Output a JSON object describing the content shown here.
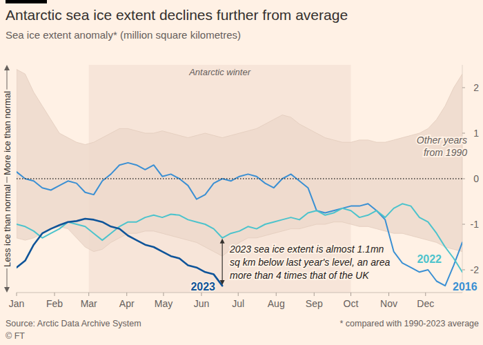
{
  "chart_data": {
    "type": "line",
    "title": "Antarctic sea ice extent declines further from average",
    "subtitle": "Sea ice extent anomaly* (million square kilometres)",
    "source": "Source: Arctic Data Archive System",
    "note": "* compared with 1990-2023 average",
    "credit": "© FT",
    "x": [
      1,
      8,
      15,
      22,
      29,
      36,
      43,
      50,
      57,
      64,
      71,
      78,
      85,
      92,
      99,
      106,
      113,
      120,
      127,
      134,
      141,
      148,
      155,
      162,
      169,
      176,
      183,
      190,
      197,
      204,
      211,
      218,
      225,
      232,
      239,
      246,
      253,
      260,
      267,
      274,
      281,
      288,
      295,
      302,
      309,
      316,
      323,
      330,
      337,
      344,
      351,
      358,
      365
    ],
    "xlim": [
      1,
      365
    ],
    "xticks": [
      {
        "value": 1,
        "label": "Jan"
      },
      {
        "value": 32,
        "label": "Feb"
      },
      {
        "value": 60,
        "label": "Mar"
      },
      {
        "value": 91,
        "label": "Apr"
      },
      {
        "value": 121,
        "label": "May"
      },
      {
        "value": 152,
        "label": "Jun"
      },
      {
        "value": 182,
        "label": "Jul"
      },
      {
        "value": 213,
        "label": "Aug"
      },
      {
        "value": 244,
        "label": "Sep"
      },
      {
        "value": 274,
        "label": "Oct"
      },
      {
        "value": 305,
        "label": "Nov"
      },
      {
        "value": 335,
        "label": "Dec"
      }
    ],
    "ylim": [
      -2.5,
      2.5
    ],
    "yticks": [
      -2,
      -1,
      0,
      1,
      2
    ],
    "grid": false,
    "series": [
      {
        "name": "Other years from 1990",
        "type": "band",
        "color": "#ecd8cb",
        "values": [
          2.4,
          2.3,
          1.9,
          1.6,
          1.3,
          1.0,
          0.9,
          0.8,
          0.75,
          0.8,
          0.9,
          1.0,
          1.1,
          1.1,
          1.05,
          1.0,
          1.0,
          1.05,
          1.0,
          0.95,
          0.9,
          0.95,
          1.0,
          0.95,
          0.9,
          0.95,
          1.0,
          1.05,
          1.1,
          1.2,
          1.3,
          1.4,
          1.35,
          1.2,
          1.1,
          1.0,
          0.9,
          0.85,
          0.8,
          0.8,
          0.85,
          0.85,
          0.8,
          0.8,
          0.85,
          0.9,
          0.95,
          1.0,
          1.1,
          1.3,
          1.6,
          2.0,
          2.3
        ],
        "lower": [
          -1.3,
          -1.35,
          -1.3,
          -1.2,
          -1.1,
          -1.05,
          -1.1,
          -1.3,
          -1.5,
          -1.6,
          -1.55,
          -1.4,
          -1.3,
          -1.2,
          -1.2,
          -1.15,
          -1.15,
          -1.2,
          -1.25,
          -1.3,
          -1.35,
          -1.4,
          -1.5,
          -1.6,
          -1.7,
          -1.55,
          -1.4,
          -1.3,
          -1.3,
          -1.25,
          -1.2,
          -1.15,
          -1.1,
          -1.1,
          -1.05,
          -1.0,
          -1.0,
          -0.95,
          -0.95,
          -1.0,
          -1.05,
          -1.05,
          -1.1,
          -1.15,
          -1.2,
          -1.2,
          -1.25,
          -1.3,
          -1.35,
          -1.4,
          -1.5,
          -1.55,
          -1.6
        ]
      },
      {
        "name": "2016",
        "type": "line",
        "color": "#3a8fd3",
        "values": [
          0.15,
          0.0,
          -0.05,
          -0.2,
          -0.25,
          -0.15,
          -0.05,
          -0.1,
          -0.3,
          -0.35,
          -0.05,
          0.1,
          0.3,
          0.35,
          0.3,
          0.2,
          0.3,
          0.05,
          0.1,
          0.0,
          -0.15,
          -0.45,
          -0.35,
          -0.1,
          0.0,
          -0.05,
          0.05,
          0.1,
          0.05,
          -0.1,
          -0.2,
          0.0,
          0.1,
          -0.05,
          -0.2,
          -0.7,
          -0.75,
          -0.7,
          -0.65,
          -0.6,
          -0.6,
          -0.55,
          -0.7,
          -0.9,
          -1.6,
          -1.85,
          -1.95,
          -2.05,
          -2.0,
          -2.25,
          -2.35,
          -1.9,
          -1.4
        ]
      },
      {
        "name": "2022",
        "type": "line",
        "color": "#4cc3cc",
        "values": [
          -1.0,
          -1.05,
          -1.15,
          -1.3,
          -1.2,
          -1.1,
          -0.95,
          -1.0,
          -1.05,
          -1.2,
          -1.35,
          -1.2,
          -1.05,
          -0.95,
          -0.95,
          -0.85,
          -0.8,
          -0.85,
          -0.78,
          -0.8,
          -0.9,
          -0.95,
          -1.0,
          -1.1,
          -1.3,
          -1.2,
          -1.15,
          -1.05,
          -1.1,
          -1.0,
          -0.95,
          -0.9,
          -0.85,
          -0.9,
          -0.75,
          -0.7,
          -0.8,
          -0.75,
          -0.65,
          -0.7,
          -0.85,
          -0.8,
          -0.7,
          -0.85,
          -0.65,
          -0.55,
          -0.6,
          -0.85,
          -0.95,
          -1.2,
          -1.5,
          -1.75,
          -2.05
        ]
      },
      {
        "name": "2023",
        "type": "line",
        "color": "#0f5499",
        "values": [
          -1.95,
          -1.8,
          -1.45,
          -1.2,
          -1.1,
          -1.02,
          -0.95,
          -0.93,
          -0.88,
          -0.9,
          -0.95,
          -1.05,
          -1.1,
          -1.25,
          -1.35,
          -1.45,
          -1.5,
          -1.6,
          -1.7,
          -1.75,
          -1.9,
          -1.95,
          -2.05,
          -2.1,
          -2.35,
          null,
          null,
          null,
          null,
          null,
          null,
          null,
          null,
          null,
          null,
          null,
          null,
          null,
          null,
          null,
          null,
          null,
          null,
          null,
          null,
          null,
          null,
          null,
          null,
          null,
          null,
          null,
          null
        ]
      }
    ],
    "annotations": [
      {
        "text": "Antarctic winter",
        "x_start": 60,
        "x_end": 274
      },
      {
        "text": "More ice than normal"
      },
      {
        "text": "Less ice than normal"
      },
      {
        "lines": [
          "2023 sea ice extent is almost 1.1mn",
          "sq km below last year's level, an area",
          "more than 4 times that of the UK"
        ]
      }
    ]
  }
}
